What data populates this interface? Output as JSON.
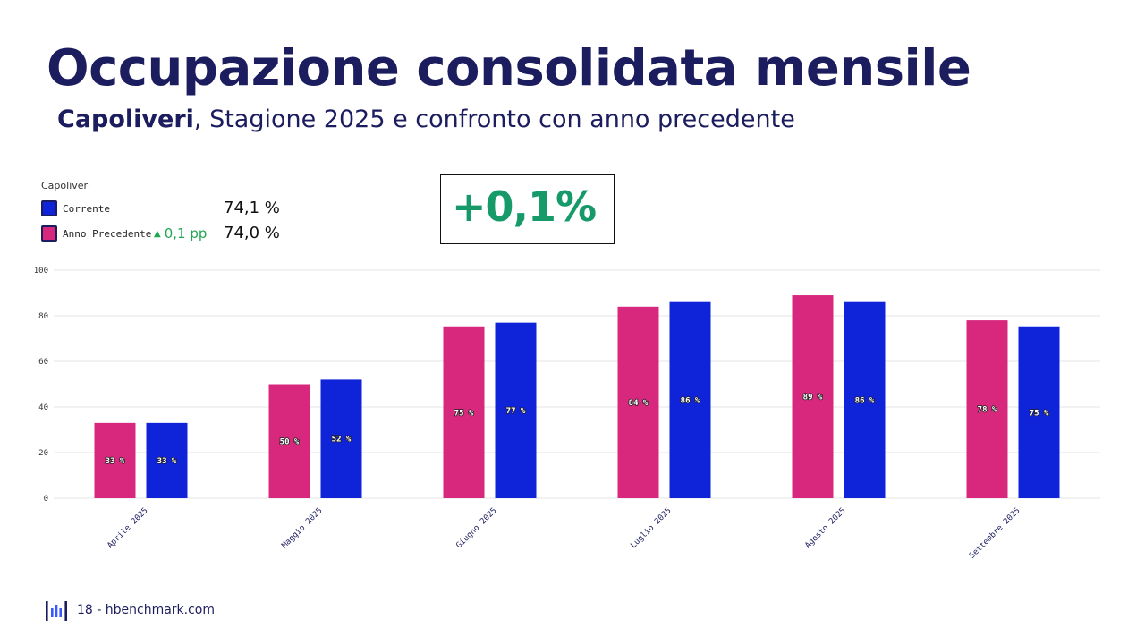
{
  "header": {
    "title": "Occupazione consolidata mensile",
    "subtitle_bold": "Capoliveri",
    "subtitle_rest": ", Stagione 2025 e confronto con anno precedente"
  },
  "legend": {
    "heading": "Capoliveri",
    "current_label": "Corrente",
    "current_value": "74,1 %",
    "previous_label": "Anno Precedente",
    "previous_value": "74,0 %",
    "delta": "0,1 pp"
  },
  "badge": {
    "text": "+0,1%"
  },
  "colors": {
    "current": "#0f23d9",
    "previous": "#d8287e",
    "delta": "#1fa750",
    "badge": "#169a6a"
  },
  "chart_data": {
    "type": "bar",
    "categories": [
      "Aprile 2025",
      "Maggio 2025",
      "Giugno 2025",
      "Luglio 2025",
      "Agosto 2025",
      "Settembre 2025"
    ],
    "series": [
      {
        "name": "Anno Precedente",
        "values": [
          33,
          50,
          75,
          84,
          89,
          78
        ],
        "labels": [
          "33 %",
          "50 %",
          "75 %",
          "84 %",
          "89 %",
          "78 %"
        ]
      },
      {
        "name": "Corrente",
        "values": [
          33,
          52,
          77,
          86,
          86,
          75
        ],
        "labels": [
          "33 %",
          "52 %",
          "77 %",
          "86 %",
          "86 %",
          "75 %"
        ]
      }
    ],
    "ylim": [
      0,
      100
    ],
    "yticks": [
      "0",
      "20",
      "40",
      "60",
      "80",
      "100"
    ],
    "grid": true,
    "legend_position": "top-left"
  },
  "footer": {
    "icon": "hbenchmark-logo-icon",
    "text": "18 - hbenchmark.com"
  }
}
